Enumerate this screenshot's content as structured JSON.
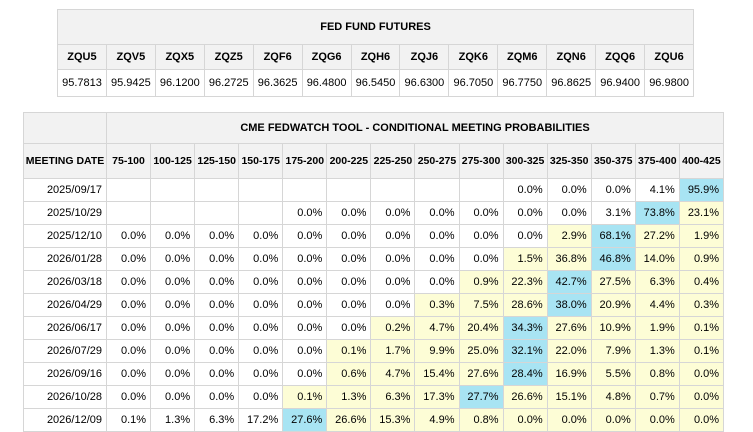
{
  "futures": {
    "title": "FED FUND FUTURES",
    "symbols": [
      "ZQU5",
      "ZQV5",
      "ZQX5",
      "ZQZ5",
      "ZQF6",
      "ZQG6",
      "ZQH6",
      "ZQJ6",
      "ZQK6",
      "ZQM6",
      "ZQN6",
      "ZQQ6",
      "ZQU6"
    ],
    "values": [
      "95.7813",
      "95.9425",
      "96.1200",
      "96.2725",
      "96.3625",
      "96.4800",
      "96.5450",
      "96.6300",
      "96.7050",
      "96.7750",
      "96.8625",
      "96.9400",
      "96.9800"
    ]
  },
  "probabilities": {
    "title": "CME FEDWATCH TOOL - CONDITIONAL MEETING PROBABILITIES",
    "date_header": "MEETING DATE",
    "ranges": [
      "75-100",
      "100-125",
      "125-150",
      "150-175",
      "175-200",
      "200-225",
      "225-250",
      "250-275",
      "275-300",
      "300-325",
      "325-350",
      "350-375",
      "375-400",
      "400-425"
    ],
    "highlight_colors": {
      "yellow": "#fdfdd6",
      "blue": "#a8e4f3"
    },
    "rows": [
      {
        "date": "2025/09/17",
        "values": [
          "",
          "",
          "",
          "",
          "",
          "",
          "",
          "",
          "",
          "0.0%",
          "0.0%",
          "0.0%",
          "4.1%",
          "95.9%"
        ],
        "levels": [
          "",
          "",
          "",
          "",
          "",
          "",
          "",
          "",
          "",
          "",
          "",
          "",
          "",
          "blue"
        ]
      },
      {
        "date": "2025/10/29",
        "values": [
          "",
          "",
          "",
          "",
          "0.0%",
          "0.0%",
          "0.0%",
          "0.0%",
          "0.0%",
          "0.0%",
          "0.0%",
          "3.1%",
          "73.8%",
          "23.1%"
        ],
        "levels": [
          "",
          "",
          "",
          "",
          "",
          "",
          "",
          "",
          "",
          "",
          "",
          "",
          "blue",
          "yellow"
        ]
      },
      {
        "date": "2025/12/10",
        "values": [
          "0.0%",
          "0.0%",
          "0.0%",
          "0.0%",
          "0.0%",
          "0.0%",
          "0.0%",
          "0.0%",
          "0.0%",
          "0.0%",
          "2.9%",
          "68.1%",
          "27.2%",
          "1.9%"
        ],
        "levels": [
          "",
          "",
          "",
          "",
          "",
          "",
          "",
          "",
          "",
          "",
          "yellow",
          "blue",
          "yellow",
          "yellow"
        ]
      },
      {
        "date": "2026/01/28",
        "values": [
          "0.0%",
          "0.0%",
          "0.0%",
          "0.0%",
          "0.0%",
          "0.0%",
          "0.0%",
          "0.0%",
          "0.0%",
          "1.5%",
          "36.8%",
          "46.8%",
          "14.0%",
          "0.9%"
        ],
        "levels": [
          "",
          "",
          "",
          "",
          "",
          "",
          "",
          "",
          "",
          "yellow",
          "yellow",
          "blue",
          "yellow",
          "yellow"
        ]
      },
      {
        "date": "2026/03/18",
        "values": [
          "0.0%",
          "0.0%",
          "0.0%",
          "0.0%",
          "0.0%",
          "0.0%",
          "0.0%",
          "0.0%",
          "0.9%",
          "22.3%",
          "42.7%",
          "27.5%",
          "6.3%",
          "0.4%"
        ],
        "levels": [
          "",
          "",
          "",
          "",
          "",
          "",
          "",
          "",
          "yellow",
          "yellow",
          "blue",
          "yellow",
          "yellow",
          "yellow"
        ]
      },
      {
        "date": "2026/04/29",
        "values": [
          "0.0%",
          "0.0%",
          "0.0%",
          "0.0%",
          "0.0%",
          "0.0%",
          "0.0%",
          "0.3%",
          "7.5%",
          "28.6%",
          "38.0%",
          "20.9%",
          "4.4%",
          "0.3%"
        ],
        "levels": [
          "",
          "",
          "",
          "",
          "",
          "",
          "",
          "yellow",
          "yellow",
          "yellow",
          "blue",
          "yellow",
          "yellow",
          "yellow"
        ]
      },
      {
        "date": "2026/06/17",
        "values": [
          "0.0%",
          "0.0%",
          "0.0%",
          "0.0%",
          "0.0%",
          "0.0%",
          "0.2%",
          "4.7%",
          "20.4%",
          "34.3%",
          "27.6%",
          "10.9%",
          "1.9%",
          "0.1%"
        ],
        "levels": [
          "",
          "",
          "",
          "",
          "",
          "",
          "yellow",
          "yellow",
          "yellow",
          "blue",
          "yellow",
          "yellow",
          "yellow",
          "yellow"
        ]
      },
      {
        "date": "2026/07/29",
        "values": [
          "0.0%",
          "0.0%",
          "0.0%",
          "0.0%",
          "0.0%",
          "0.1%",
          "1.7%",
          "9.9%",
          "25.0%",
          "32.1%",
          "22.0%",
          "7.9%",
          "1.3%",
          "0.1%"
        ],
        "levels": [
          "",
          "",
          "",
          "",
          "",
          "yellow",
          "yellow",
          "yellow",
          "yellow",
          "blue",
          "yellow",
          "yellow",
          "yellow",
          "yellow"
        ]
      },
      {
        "date": "2026/09/16",
        "values": [
          "0.0%",
          "0.0%",
          "0.0%",
          "0.0%",
          "0.0%",
          "0.6%",
          "4.7%",
          "15.4%",
          "27.6%",
          "28.4%",
          "16.9%",
          "5.5%",
          "0.8%",
          "0.0%"
        ],
        "levels": [
          "",
          "",
          "",
          "",
          "",
          "yellow",
          "yellow",
          "yellow",
          "yellow",
          "blue",
          "yellow",
          "yellow",
          "yellow",
          "yellow"
        ]
      },
      {
        "date": "2026/10/28",
        "values": [
          "0.0%",
          "0.0%",
          "0.0%",
          "0.0%",
          "0.1%",
          "1.3%",
          "6.3%",
          "17.3%",
          "27.7%",
          "26.6%",
          "15.1%",
          "4.8%",
          "0.7%",
          "0.0%"
        ],
        "levels": [
          "",
          "",
          "",
          "",
          "yellow",
          "yellow",
          "yellow",
          "yellow",
          "blue",
          "yellow",
          "yellow",
          "yellow",
          "yellow",
          "yellow"
        ]
      },
      {
        "date": "2026/12/09",
        "values": [
          "0.1%",
          "1.3%",
          "6.3%",
          "17.2%",
          "27.6%",
          "26.6%",
          "15.3%",
          "4.9%",
          "0.8%",
          "0.0%",
          "0.0%",
          "0.0%",
          "0.0%",
          "0.0%"
        ],
        "levels": [
          "",
          "",
          "",
          "",
          "blue",
          "yellow",
          "yellow",
          "yellow",
          "yellow",
          "yellow",
          "yellow",
          "yellow",
          "yellow",
          "yellow"
        ]
      }
    ]
  }
}
